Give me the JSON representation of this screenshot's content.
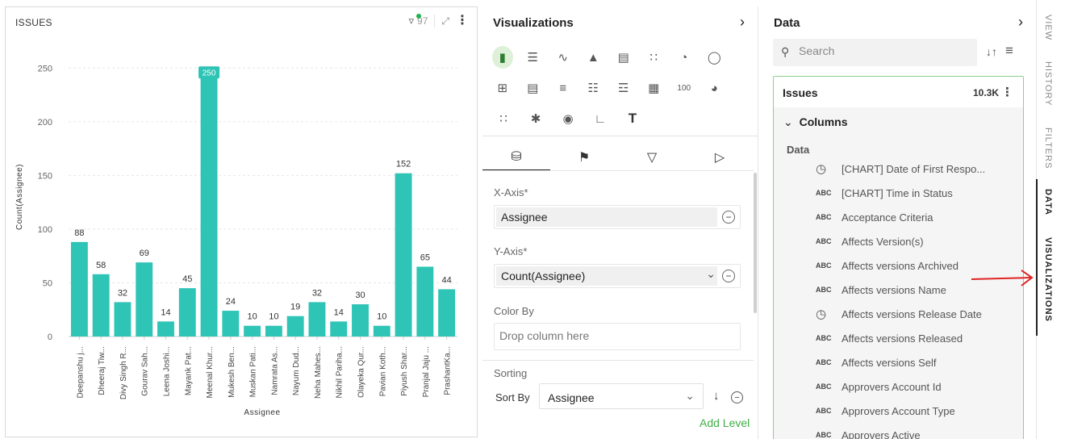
{
  "chart_panel": {
    "title": "ISSUES",
    "filter_count": "97"
  },
  "chart_data": {
    "type": "bar",
    "ylabel": "Count(Assignee)",
    "xlabel": "Assignee",
    "ylim": [
      0,
      260
    ],
    "yticks": [
      "0",
      "50",
      "100",
      "150",
      "200",
      "250"
    ],
    "bar_color": "#2ec4b6",
    "highlight_color": "#2ec4b6",
    "categories": [
      "Deepanshu j...",
      "Dheeraj Tiw...",
      "Divy Singh R...",
      "Gourav Sah...",
      "Leena Joshi...",
      "Mayank Pat...",
      "Meenal Khur...",
      "Mukesh Ben...",
      "Muskan Pati...",
      "Namrata As...",
      "Nayum Dud...",
      "Neha Mahes...",
      "Nikhil Pariha...",
      "Olayeka Qur...",
      "Pavian Koth...",
      "Piyush Shar...",
      "Pranjal Jaju ...",
      "PrashantKa..."
    ],
    "values": [
      88,
      58,
      32,
      69,
      14,
      45,
      250,
      24,
      10,
      10,
      19,
      32,
      14,
      30,
      10,
      152,
      65,
      44
    ],
    "grid": true,
    "highlighted_index": 6
  },
  "viz_panel": {
    "title": "Visualizations",
    "icons_row1": [
      "bar-chart",
      "horizontal-bar",
      "line-chart",
      "area-chart",
      "combo-chart",
      "scatter-chart",
      "pie-chart",
      "donut-chart"
    ],
    "icons_row2": [
      "pivot-table",
      "table",
      "summary-table",
      "list",
      "list-view",
      "grid",
      "number",
      "gauge"
    ],
    "icons_row3": [
      "heatmap",
      "network",
      "globe",
      "kpi",
      "text"
    ],
    "number_icon_text": "100",
    "text_icon_text": "T",
    "tabs": [
      "data",
      "format",
      "filter",
      "drilldown"
    ],
    "x_axis_label": "X-Axis*",
    "x_axis_value": "Assignee",
    "y_axis_label": "Y-Axis*",
    "y_axis_value": "Count(Assignee)",
    "color_by_label": "Color By",
    "color_by_placeholder": "Drop column here",
    "sorting_label": "Sorting",
    "sort_by_label": "Sort By",
    "sort_by_value": "Assignee",
    "add_level": "Add Level"
  },
  "data_panel": {
    "title": "Data",
    "search_placeholder": "Search",
    "dataset_name": "Issues",
    "dataset_count": "10.3K",
    "columns_label": "Columns",
    "data_label": "Data",
    "columns": [
      {
        "type": "clock",
        "name": "[CHART] Date of First Respo..."
      },
      {
        "type": "ABC",
        "name": "[CHART] Time in Status"
      },
      {
        "type": "ABC",
        "name": "Acceptance Criteria"
      },
      {
        "type": "ABC",
        "name": "Affects Version(s)"
      },
      {
        "type": "ABC",
        "name": "Affects versions Archived"
      },
      {
        "type": "ABC",
        "name": "Affects versions Name"
      },
      {
        "type": "clock",
        "name": "Affects versions Release Date"
      },
      {
        "type": "ABC",
        "name": "Affects versions Released"
      },
      {
        "type": "ABC",
        "name": "Affects versions Self"
      },
      {
        "type": "ABC",
        "name": "Approvers Account Id"
      },
      {
        "type": "ABC",
        "name": "Approvers Account Type"
      },
      {
        "type": "ABC",
        "name": "Approvers Active"
      }
    ]
  },
  "side_tabs": {
    "view": "VIEW",
    "history": "HISTORY",
    "filters": "FILTERS",
    "data": "DATA",
    "visualizations": "VISUALIZATIONS"
  },
  "colors": {
    "accent_green": "#3fae49",
    "bar": "#2ec4b6",
    "annotation_red": "#e02424"
  }
}
